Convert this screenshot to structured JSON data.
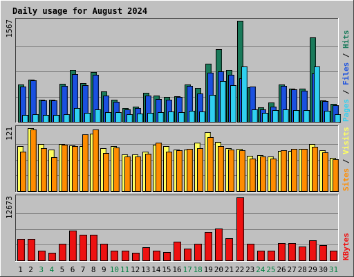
{
  "title": "Daily usage for August 2024",
  "colors": {
    "background": "#c0c0c0",
    "title": "#0000cc",
    "panel": "#c0c0c0",
    "grid": "#808080",
    "weekday_label": "#000000",
    "weekend_label": "#008040",
    "hits": "#1a7a5a",
    "files": "#1a50e0",
    "pages": "#30d0f0",
    "visits": "#ffff60",
    "sites": "#ff8c00",
    "kbytes": "#ee1111",
    "separator_text": "#000000"
  },
  "chart_data": [
    {
      "type": "bar",
      "panel": "hits-files-pages",
      "max_label": "1567",
      "ylim": [
        0,
        1567
      ],
      "categories": [
        "1",
        "2",
        "3",
        "4",
        "5",
        "6",
        "7",
        "8",
        "9",
        "10",
        "11",
        "12",
        "13",
        "14",
        "15",
        "16",
        "17",
        "18",
        "19",
        "20",
        "21",
        "22",
        "23",
        "24",
        "25",
        "26",
        "27",
        "28",
        "29",
        "30",
        "31"
      ],
      "weekend_days": [
        3,
        4,
        10,
        11,
        17,
        18,
        24,
        25,
        31
      ],
      "series": [
        {
          "name": "Hits",
          "values": [
            580,
            660,
            340,
            340,
            590,
            810,
            600,
            770,
            470,
            340,
            220,
            240,
            450,
            410,
            390,
            400,
            580,
            530,
            900,
            1130,
            800,
            1567,
            540,
            230,
            300,
            580,
            520,
            510,
            1310,
            330,
            280
          ]
        },
        {
          "name": "Files",
          "values": [
            550,
            640,
            330,
            330,
            560,
            740,
            570,
            730,
            410,
            310,
            190,
            220,
            410,
            350,
            340,
            390,
            560,
            440,
            760,
            780,
            730,
            680,
            550,
            190,
            240,
            560,
            500,
            480,
            750,
            320,
            260
          ]
        },
        {
          "name": "Pages",
          "values": [
            110,
            120,
            110,
            110,
            120,
            210,
            140,
            190,
            150,
            150,
            120,
            130,
            140,
            150,
            160,
            150,
            170,
            160,
            420,
            630,
            570,
            860,
            190,
            140,
            180,
            190,
            180,
            180,
            860,
            170,
            120
          ]
        }
      ],
      "side_labels": [
        "Pages",
        "Files",
        "Hits"
      ]
    },
    {
      "type": "bar",
      "panel": "visits-sites",
      "max_label": "121",
      "ylim": [
        0,
        121
      ],
      "categories": [
        "1",
        "2",
        "3",
        "4",
        "5",
        "6",
        "7",
        "8",
        "9",
        "10",
        "11",
        "12",
        "13",
        "14",
        "15",
        "16",
        "17",
        "18",
        "19",
        "20",
        "21",
        "22",
        "23",
        "24",
        "25",
        "26",
        "27",
        "28",
        "29",
        "30",
        "31"
      ],
      "series": [
        {
          "name": "Visits",
          "values": [
            86,
            121,
            90,
            80,
            90,
            88,
            86,
            111,
            83,
            86,
            71,
            71,
            76,
            89,
            86,
            80,
            80,
            93,
            113,
            95,
            82,
            81,
            68,
            69,
            66,
            77,
            77,
            81,
            91,
            79,
            64
          ]
        },
        {
          "name": "Sites",
          "values": [
            76,
            118,
            83,
            65,
            89,
            86,
            109,
            118,
            73,
            84,
            66,
            67,
            72,
            93,
            76,
            79,
            81,
            83,
            104,
            87,
            80,
            78,
            62,
            66,
            63,
            79,
            81,
            81,
            85,
            74,
            61
          ]
        }
      ],
      "side_labels": [
        "Sites",
        "Visits"
      ]
    },
    {
      "type": "bar",
      "panel": "kbytes",
      "max_label": "12673",
      "ylim": [
        0,
        12673
      ],
      "categories": [
        "1",
        "2",
        "3",
        "4",
        "5",
        "6",
        "7",
        "8",
        "9",
        "10",
        "11",
        "12",
        "13",
        "14",
        "15",
        "16",
        "17",
        "18",
        "19",
        "20",
        "21",
        "22",
        "23",
        "24",
        "25",
        "26",
        "27",
        "28",
        "29",
        "30",
        "31"
      ],
      "series": [
        {
          "name": "KBytes",
          "values": [
            4300,
            4300,
            1900,
            1500,
            3300,
            6000,
            5100,
            5200,
            3300,
            1900,
            1900,
            1500,
            2700,
            1900,
            1700,
            3700,
            2300,
            3300,
            5700,
            6400,
            4400,
            12673,
            3300,
            1900,
            1900,
            3500,
            3500,
            2800,
            4100,
            3000,
            1900
          ]
        }
      ],
      "side_labels": [
        "KBytes"
      ]
    }
  ]
}
